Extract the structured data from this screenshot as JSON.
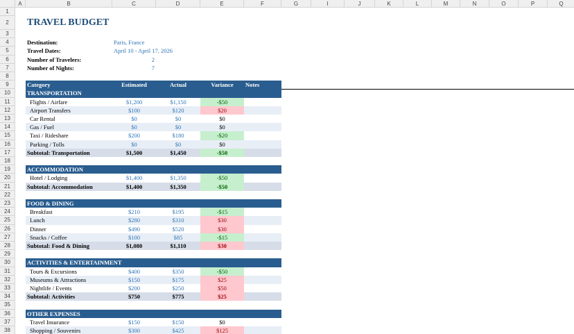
{
  "sheet": {
    "column_letters": [
      "A",
      "B",
      "C",
      "D",
      "E",
      "F",
      "G",
      "I",
      "J",
      "K",
      "L",
      "M",
      "N",
      "O",
      "P",
      "Q"
    ],
    "row_numbers": [
      1,
      2,
      3,
      4,
      5,
      6,
      7,
      8,
      9,
      10,
      11,
      12,
      13,
      14,
      15,
      16,
      17,
      18,
      19,
      20,
      21,
      22,
      23,
      24,
      25,
      26,
      27,
      28,
      29,
      30,
      31,
      32,
      33,
      34,
      35,
      36,
      37,
      38
    ]
  },
  "header": {
    "title": "TRAVEL BUDGET"
  },
  "info": [
    {
      "label": "Destination:",
      "value": "Paris, France"
    },
    {
      "label": "Travel Dates:",
      "value": "April 10 - April 17, 2026"
    },
    {
      "label": "Number of Travelers:",
      "value": "2"
    },
    {
      "label": "Number of Nights:",
      "value": "7"
    }
  ],
  "table": {
    "columns": [
      "Category",
      "Estimated",
      "Actual",
      "Variance",
      "Notes"
    ],
    "sections": [
      {
        "name": "TRANSPORTATION",
        "rows": [
          {
            "category": "Flights / Airfare",
            "estimated": "$1,200",
            "actual": "$1,150",
            "variance": "-$50",
            "variance_fill": "#c6efce"
          },
          {
            "category": "Airport Transfers",
            "estimated": "$100",
            "actual": "$120",
            "variance": "$20",
            "variance_fill": "#ffc7ce"
          },
          {
            "category": "Car Rental",
            "estimated": "$0",
            "actual": "$0",
            "variance": "$0"
          },
          {
            "category": "Gas / Fuel",
            "estimated": "$0",
            "actual": "$0",
            "variance": "$0"
          },
          {
            "category": "Taxi / Rideshare",
            "estimated": "$200",
            "actual": "$180",
            "variance": "-$20",
            "variance_fill": "#c6efce"
          },
          {
            "category": "Parking / Tolls",
            "estimated": "$0",
            "actual": "$0",
            "variance": "$0"
          }
        ],
        "subtotal": {
          "category": "Subtotal: Transportation",
          "estimated": "$1,500",
          "actual": "$1,450",
          "variance": "-$50",
          "variance_fill": "#c6efce"
        }
      },
      {
        "name": "ACCOMMODATION",
        "rows": [
          {
            "category": "Hotel / Lodging",
            "estimated": "$1,400",
            "actual": "$1,350",
            "variance": "-$50",
            "variance_fill": "#c6efce"
          }
        ],
        "subtotal": {
          "category": "Subtotal: Accommodation",
          "estimated": "$1,400",
          "actual": "$1,350",
          "variance": "-$50",
          "variance_fill": "#c6efce"
        }
      },
      {
        "name": "FOOD & DINING",
        "rows": [
          {
            "category": "Breakfast",
            "estimated": "$210",
            "actual": "$195",
            "variance": "-$15",
            "variance_fill": "#c6efce"
          },
          {
            "category": "Lunch",
            "estimated": "$280",
            "actual": "$310",
            "variance": "$30",
            "variance_fill": "#ffc7ce"
          },
          {
            "category": "Dinner",
            "estimated": "$490",
            "actual": "$520",
            "variance": "$30",
            "variance_fill": "#ffc7ce"
          },
          {
            "category": "Snacks / Coffee",
            "estimated": "$100",
            "actual": "$85",
            "variance": "-$15",
            "variance_fill": "#c6efce"
          }
        ],
        "subtotal": {
          "category": "Subtotal: Food & Dining",
          "estimated": "$1,080",
          "actual": "$1,110",
          "variance": "$30",
          "variance_fill": "#ffc7ce"
        }
      },
      {
        "name": "ACTIVITIES & ENTERTAINMENT",
        "rows": [
          {
            "category": "Tours & Excursions",
            "estimated": "$400",
            "actual": "$350",
            "variance": "-$50",
            "variance_fill": "#c6efce"
          },
          {
            "category": "Museums & Attractions",
            "estimated": "$150",
            "actual": "$175",
            "variance": "$25",
            "variance_fill": "#ffc7ce"
          },
          {
            "category": "Nightlife / Events",
            "estimated": "$200",
            "actual": "$250",
            "variance": "$50",
            "variance_fill": "#ffc7ce"
          }
        ],
        "subtotal": {
          "category": "Subtotal: Activities",
          "estimated": "$750",
          "actual": "$775",
          "variance": "$25",
          "variance_fill": "#ffc7ce"
        }
      },
      {
        "name": "OTHER EXPENSES",
        "rows": [
          {
            "category": "Travel Insurance",
            "estimated": "$150",
            "actual": "$150",
            "variance": "$0"
          },
          {
            "category": "Shopping / Souvenirs",
            "estimated": "$300",
            "actual": "$425",
            "variance": "$125",
            "variance_fill": "#ffc7ce"
          }
        ]
      }
    ]
  }
}
